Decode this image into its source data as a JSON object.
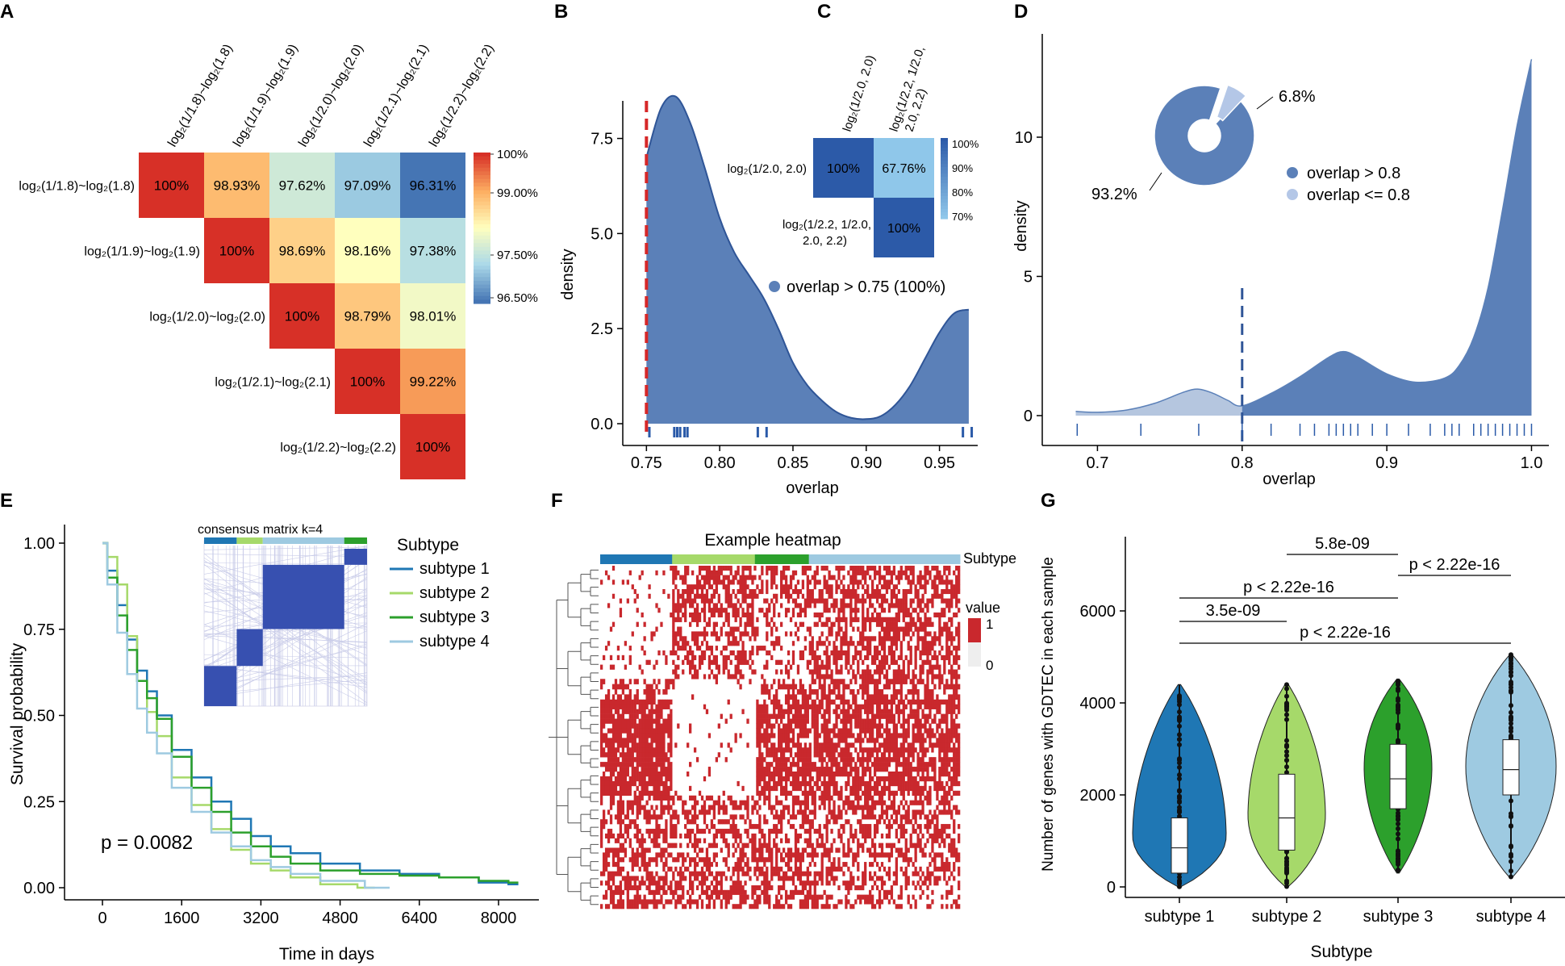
{
  "panel_letters": [
    "A",
    "B",
    "C",
    "D",
    "E",
    "F",
    "G"
  ],
  "colors": {
    "density_fill": "#5b80b8",
    "density_light": "#b4c7e7",
    "density_stroke": "#2f5597",
    "cutoff_red": "#d62728",
    "rug": "#2a5aa8",
    "heat_red": "#c9282d",
    "sub1": "#1f77b4",
    "sub2": "#a6d96a",
    "sub3": "#2ca02c",
    "sub4": "#9ecae1",
    "consensus_blue": "#3750b0"
  },
  "chart_data": [
    {
      "panel": "A",
      "type": "heatmap",
      "labels": [
        "log₂(1/1.8)~log₂(1.8)",
        "log₂(1/1.9)~log₂(1.9)",
        "log₂(1/2.0)~log₂(2.0)",
        "log₂(1/2.1)~log₂(2.1)",
        "log₂(1/2.2)~log₂(2.2)"
      ],
      "matrix": [
        [
          "100%",
          "98.93%",
          "97.62%",
          "97.09%",
          "96.31%"
        ],
        [
          null,
          "100%",
          "98.69%",
          "98.16%",
          "97.38%"
        ],
        [
          null,
          null,
          "100%",
          "98.79%",
          "98.01%"
        ],
        [
          null,
          null,
          null,
          "100%",
          "99.22%"
        ],
        [
          null,
          null,
          null,
          null,
          "100%"
        ]
      ],
      "values": [
        [
          100,
          98.93,
          97.62,
          97.09,
          96.31
        ],
        [
          null,
          100,
          98.69,
          98.16,
          97.38
        ],
        [
          null,
          null,
          100,
          98.79,
          98.01
        ],
        [
          null,
          null,
          null,
          100,
          99.22
        ],
        [
          null,
          null,
          null,
          null,
          100
        ]
      ],
      "colorbar": {
        "ticks": [
          "100%",
          "99.00%",
          "97.50%",
          "96.50%"
        ],
        "range": [
          96.31,
          100
        ]
      }
    },
    {
      "panel": "B",
      "type": "area",
      "xlabel": "overlap",
      "ylabel": "density",
      "x_ticks": [
        "0.75",
        "0.80",
        "0.85",
        "0.90",
        "0.95"
      ],
      "y_ticks": [
        "0.0",
        "2.5",
        "5.0",
        "7.5"
      ],
      "xlim": [
        0.741,
        0.975
      ],
      "ylim": [
        -0.2,
        8.8
      ],
      "curve": {
        "x": [
          0.75,
          0.76,
          0.77,
          0.78,
          0.79,
          0.8,
          0.81,
          0.82,
          0.83,
          0.84,
          0.85,
          0.86,
          0.87,
          0.88,
          0.89,
          0.9,
          0.91,
          0.92,
          0.93,
          0.94,
          0.95,
          0.96,
          0.97
        ],
        "y": [
          7.0,
          8.3,
          8.6,
          7.9,
          6.7,
          5.4,
          4.5,
          3.9,
          3.3,
          2.5,
          1.6,
          1.0,
          0.6,
          0.3,
          0.15,
          0.12,
          0.2,
          0.5,
          1.0,
          1.7,
          2.4,
          2.9,
          3.0
        ]
      },
      "cutoff": 0.75,
      "rug": [
        0.752,
        0.769,
        0.771,
        0.773,
        0.776,
        0.778,
        0.826,
        0.832,
        0.966,
        0.972
      ],
      "legend": "overlap  >  0.75 (100%)"
    },
    {
      "panel": "C",
      "type": "heatmap",
      "col_labels": [
        "log₂(1/2.0, 2.0)",
        "log₂(1/2.2, 1/2.0,",
        "2.0, 2.2)"
      ],
      "row_labels": [
        "log₂(1/2.0, 2.0)",
        "log₂(1/2.2, 1/2.0,",
        "2.0, 2.2)"
      ],
      "matrix": [
        [
          "100%",
          "67.76%"
        ],
        [
          null,
          "100%"
        ]
      ],
      "values": [
        [
          100,
          67.76
        ],
        [
          null,
          100
        ]
      ],
      "colorbar": {
        "ticks": [
          "100%",
          "90%",
          "80%",
          "70%"
        ],
        "range": [
          67.76,
          100
        ]
      }
    },
    {
      "panel": "D",
      "type": "area",
      "xlabel": "overlap",
      "ylabel": "density",
      "x_ticks": [
        "0.7",
        "0.8",
        "0.9",
        "1.0"
      ],
      "y_ticks": [
        "0",
        "5",
        "10"
      ],
      "xlim": [
        0.673,
        1.012
      ],
      "ylim": [
        -0.4,
        13.6
      ],
      "curve": {
        "x": [
          0.685,
          0.7,
          0.72,
          0.74,
          0.76,
          0.77,
          0.78,
          0.79,
          0.8,
          0.82,
          0.84,
          0.86,
          0.87,
          0.88,
          0.9,
          0.92,
          0.94,
          0.95,
          0.96,
          0.97,
          0.98,
          0.99,
          1.0
        ],
        "y": [
          0.15,
          0.12,
          0.2,
          0.45,
          0.85,
          0.95,
          0.8,
          0.55,
          0.35,
          0.8,
          1.4,
          2.1,
          2.3,
          2.1,
          1.5,
          1.2,
          1.35,
          1.8,
          2.8,
          4.6,
          7.4,
          10.4,
          12.8
        ]
      },
      "cutoff": 0.8,
      "rug": [
        0.686,
        0.73,
        0.77,
        0.8,
        0.82,
        0.84,
        0.85,
        0.86,
        0.865,
        0.87,
        0.875,
        0.88,
        0.89,
        0.9,
        0.915,
        0.93,
        0.94,
        0.945,
        0.95,
        0.96,
        0.965,
        0.97,
        0.975,
        0.98,
        0.985,
        0.99,
        0.995,
        1.0
      ],
      "pie": {
        "slices": [
          {
            "label": "93.2%",
            "value": 93.2
          },
          {
            "label": "6.8%",
            "value": 6.8
          }
        ]
      },
      "legend": [
        "overlap  >  0.8",
        "overlap <= 0.8"
      ]
    },
    {
      "panel": "E",
      "type": "line",
      "xlabel": "Time in days",
      "ylabel": "Survival probability",
      "x_ticks": [
        "0",
        "1600",
        "3200",
        "4800",
        "6400",
        "8000"
      ],
      "y_ticks": [
        "0.00",
        "0.25",
        "0.50",
        "0.75",
        "1.00"
      ],
      "xlim": [
        -300,
        8400
      ],
      "ylim": [
        -0.03,
        1.05
      ],
      "annotation": "p = 0.0082",
      "legend_title": "Subtype",
      "inset_title": "consensus matrix k=4",
      "series": [
        {
          "name": "subtype 1",
          "x": [
            0,
            200,
            400,
            600,
            800,
            1000,
            1200,
            1600,
            2000,
            2400,
            2800,
            3200,
            3600,
            4000,
            4800,
            5600,
            6400,
            7200,
            8000,
            8400
          ],
          "y": [
            1.0,
            0.92,
            0.82,
            0.72,
            0.63,
            0.57,
            0.5,
            0.4,
            0.32,
            0.25,
            0.2,
            0.15,
            0.12,
            0.1,
            0.07,
            0.05,
            0.04,
            0.03,
            0.015,
            0.01
          ]
        },
        {
          "name": "subtype 2",
          "x": [
            0,
            200,
            400,
            600,
            800,
            1000,
            1200,
            1600,
            2000,
            2400,
            2800,
            3200,
            3600,
            4000,
            4800,
            5500
          ],
          "y": [
            1.0,
            0.96,
            0.88,
            0.73,
            0.6,
            0.51,
            0.44,
            0.32,
            0.24,
            0.17,
            0.11,
            0.07,
            0.05,
            0.03,
            0.01,
            0.0
          ]
        },
        {
          "name": "subtype 3",
          "x": [
            0,
            200,
            400,
            600,
            800,
            1000,
            1200,
            1600,
            2000,
            2400,
            2800,
            3200,
            3600,
            4000,
            4800,
            5600,
            6400,
            7200,
            8000,
            8400
          ],
          "y": [
            1.0,
            0.9,
            0.79,
            0.69,
            0.6,
            0.55,
            0.49,
            0.38,
            0.29,
            0.22,
            0.16,
            0.12,
            0.09,
            0.07,
            0.05,
            0.04,
            0.035,
            0.03,
            0.02,
            0.015
          ]
        },
        {
          "name": "subtype 4",
          "x": [
            0,
            200,
            400,
            600,
            800,
            1000,
            1200,
            1600,
            2000,
            2400,
            2800,
            3200,
            3600,
            4000,
            4800,
            5800
          ],
          "y": [
            1.0,
            0.88,
            0.74,
            0.62,
            0.52,
            0.45,
            0.39,
            0.29,
            0.22,
            0.16,
            0.12,
            0.08,
            0.06,
            0.04,
            0.02,
            0.0
          ]
        }
      ]
    },
    {
      "panel": "F",
      "type": "heatmap",
      "title": "Example heatmap",
      "annotation_label": "Subtype",
      "legend_title": "value",
      "legend_ticks": [
        "1",
        "0"
      ],
      "subtype_fractions": [
        0.2,
        0.23,
        0.15,
        0.42
      ],
      "row_blocks": [
        {
          "size": 0.15,
          "density": [
            0.08,
            0.6,
            0.55,
            0.6
          ]
        },
        {
          "size": 0.18,
          "density": [
            0.1,
            0.5,
            0.22,
            0.6
          ]
        },
        {
          "size": 0.06,
          "density": [
            0.45,
            0.06,
            0.5,
            0.55
          ]
        },
        {
          "size": 0.28,
          "density": [
            0.85,
            0.05,
            0.75,
            0.75
          ]
        },
        {
          "size": 0.18,
          "density": [
            0.55,
            0.45,
            0.5,
            0.55
          ]
        },
        {
          "size": 0.15,
          "density": [
            0.6,
            0.55,
            0.55,
            0.45
          ]
        }
      ]
    },
    {
      "panel": "G",
      "type": "violin",
      "xlabel": "Subtype",
      "ylabel": "Number of genes with GDTEC in each sample",
      "categories": [
        "subtype 1",
        "subtype 2",
        "subtype 3",
        "subtype 4"
      ],
      "y_ticks": [
        "0",
        "2000",
        "4000",
        "6000"
      ],
      "ylim": [
        -250,
        7500
      ],
      "box": [
        {
          "min": 0,
          "q1": 300,
          "median": 850,
          "q3": 1500,
          "max": 4400
        },
        {
          "min": 0,
          "q1": 800,
          "median": 1500,
          "q3": 2450,
          "max": 4420
        },
        {
          "min": 300,
          "q1": 1700,
          "median": 2350,
          "q3": 3100,
          "max": 4520
        },
        {
          "min": 200,
          "q1": 2000,
          "median": 2550,
          "q3": 3200,
          "max": 5050
        }
      ],
      "comparisons": [
        {
          "pair": [
            1,
            2
          ],
          "label": "5.8e-09"
        },
        {
          "pair": [
            2,
            3
          ],
          "label": "p < 2.22e-16"
        },
        {
          "pair": [
            0,
            2
          ],
          "label": "p < 2.22e-16"
        },
        {
          "pair": [
            0,
            1
          ],
          "label": "3.5e-09"
        },
        {
          "pair": [
            0,
            3
          ],
          "label": "p < 2.22e-16"
        }
      ]
    }
  ]
}
